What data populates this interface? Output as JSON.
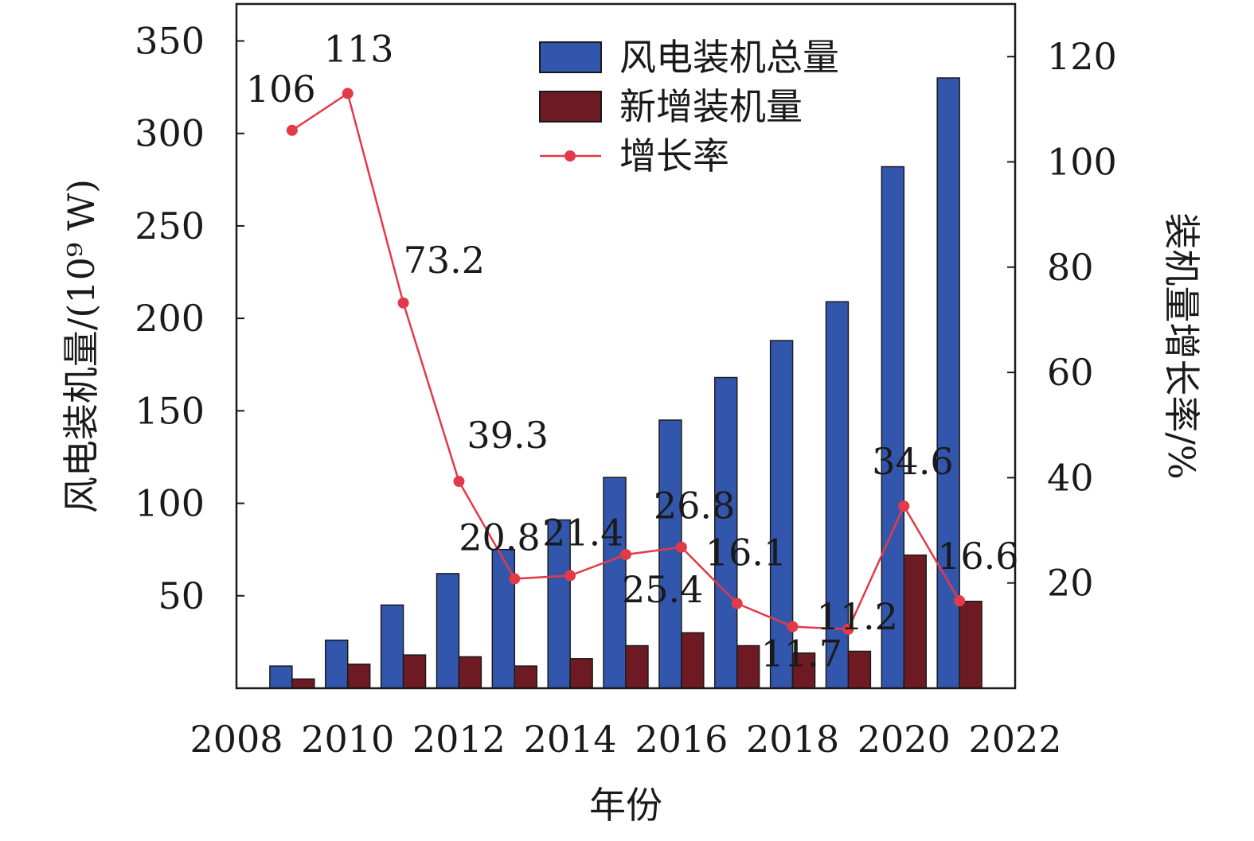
{
  "chart_data": {
    "type": "bar",
    "xlabel": "年份",
    "ylabel_left": "风电装机量/(10⁹ W)",
    "ylabel_right": "装机量增长率/%",
    "xlim": [
      2008,
      2022
    ],
    "ylim_left": [
      0,
      370
    ],
    "ylim_right": [
      0,
      130
    ],
    "x_ticks": [
      "2008",
      "2010",
      "2012",
      "2014",
      "2016",
      "2018",
      "2020",
      "2022"
    ],
    "y_left_ticks": [
      "50",
      "100",
      "150",
      "200",
      "250",
      "300",
      "350"
    ],
    "y_right_ticks": [
      "20",
      "40",
      "60",
      "80",
      "100",
      "120"
    ],
    "x": [
      2009,
      2010,
      2011,
      2012,
      2013,
      2014,
      2015,
      2016,
      2017,
      2018,
      2019,
      2020,
      2021
    ],
    "series": [
      {
        "name": "风电装机总量",
        "kind": "bar",
        "axis": "left",
        "color": "#3356ad",
        "values": [
          12,
          26,
          45,
          62,
          75,
          91,
          114,
          145,
          168,
          188,
          209,
          282,
          330
        ]
      },
      {
        "name": "新增装机量",
        "kind": "bar",
        "axis": "left",
        "color": "#6e1a22",
        "values": [
          5,
          13,
          18,
          17,
          12,
          16,
          23,
          30,
          23,
          19,
          20,
          72,
          47
        ]
      },
      {
        "name": "增长率",
        "kind": "line",
        "axis": "right",
        "color": "#e23a48",
        "values": [
          106,
          113,
          73.2,
          39.3,
          20.8,
          21.4,
          25.4,
          26.8,
          16.1,
          11.7,
          11.2,
          34.6,
          16.6
        ],
        "labels": [
          "106",
          "113",
          "73.2",
          "39.3",
          "20.8",
          "21.4",
          "25.4",
          "26.8",
          "16.1",
          "11.7",
          "11.2",
          "34.6",
          "16.6"
        ]
      }
    ],
    "legend_position": "top-center",
    "grid": false
  }
}
